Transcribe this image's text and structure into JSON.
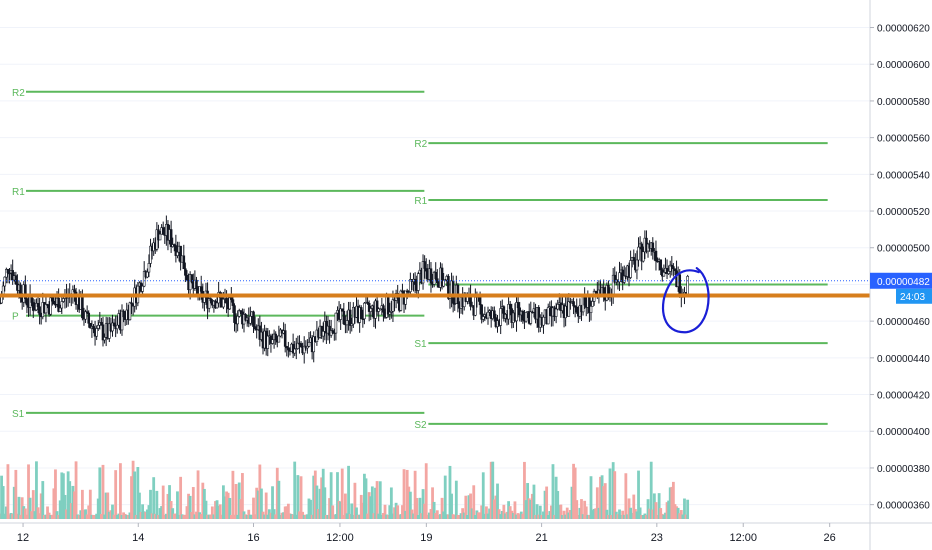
{
  "chart_data": {
    "type": "candlestick",
    "y_axis": {
      "ticks": [
        6.2e-06,
        6e-06,
        5.8e-06,
        5.6e-06,
        5.4e-06,
        5.2e-06,
        5e-06,
        4.8e-06,
        4.6e-06,
        4.4e-06,
        4.2e-06,
        4e-06,
        3.8e-06,
        3.6e-06
      ],
      "tick_labels": [
        "0.00000620",
        "0.00000600",
        "0.00000580",
        "0.00000560",
        "0.00000540",
        "0.00000520",
        "0.00000500",
        "0.00000480",
        "0.00000460",
        "0.00000440",
        "0.00000420",
        "0.00000400",
        "0.00000380",
        "0.00000360"
      ],
      "ylim": [
        3.5e-06,
        6.35e-06
      ]
    },
    "x_axis": {
      "tick_labels": [
        "12",
        "14",
        "16",
        "12:00",
        "19",
        "21",
        "23",
        "12:00",
        "26"
      ],
      "tick_days": [
        12,
        14,
        16,
        17.5,
        19,
        21,
        23,
        24.5,
        26
      ],
      "xlim": [
        11.6,
        26.7
      ]
    },
    "current_price": {
      "label": "0.00000482",
      "value": 4.82e-06,
      "color": "#2962ff"
    },
    "countdown": {
      "label": "24:03",
      "color": "#2196f3"
    },
    "horizontal_line": {
      "value": 4.74e-06,
      "color": "#d77e1c"
    },
    "pivot_periods": [
      {
        "from_day": 11.6,
        "to_day": 19,
        "levels": [
          {
            "name": "R2",
            "value": 5.85e-06
          },
          {
            "name": "R1",
            "value": 5.31e-06
          },
          {
            "name": "P",
            "value": 4.63e-06
          },
          {
            "name": "S1",
            "value": 4.1e-06
          }
        ]
      },
      {
        "from_day": 19,
        "to_day": 26,
        "levels": [
          {
            "name": "R2",
            "value": 5.57e-06
          },
          {
            "name": "R1",
            "value": 5.26e-06
          },
          {
            "name": "P",
            "value": 4.8e-06
          },
          {
            "name": "S1",
            "value": 4.48e-06
          },
          {
            "name": "S2",
            "value": 4.04e-06
          }
        ]
      }
    ],
    "price_path": [
      [
        11.6,
        4.7e-06
      ],
      [
        11.75,
        4.92e-06
      ],
      [
        11.9,
        4.8e-06
      ],
      [
        12.1,
        4.7e-06
      ],
      [
        12.3,
        4.68e-06
      ],
      [
        12.6,
        4.7e-06
      ],
      [
        12.9,
        4.76e-06
      ],
      [
        13.1,
        4.6e-06
      ],
      [
        13.3,
        4.55e-06
      ],
      [
        13.5,
        4.53e-06
      ],
      [
        13.8,
        4.65e-06
      ],
      [
        14.0,
        4.78e-06
      ],
      [
        14.2,
        4.95e-06
      ],
      [
        14.35,
        5.09e-06
      ],
      [
        14.5,
        5.07e-06
      ],
      [
        14.7,
        5e-06
      ],
      [
        14.9,
        4.8e-06
      ],
      [
        15.1,
        4.72e-06
      ],
      [
        15.3,
        4.73e-06
      ],
      [
        15.5,
        4.7e-06
      ],
      [
        15.7,
        4.63e-06
      ],
      [
        15.9,
        4.63e-06
      ],
      [
        16.1,
        4.53e-06
      ],
      [
        16.3,
        4.47e-06
      ],
      [
        16.5,
        4.5e-06
      ],
      [
        16.7,
        4.45e-06
      ],
      [
        17.0,
        4.47e-06
      ],
      [
        17.3,
        4.58e-06
      ],
      [
        17.6,
        4.62e-06
      ],
      [
        17.9,
        4.64e-06
      ],
      [
        18.2,
        4.67e-06
      ],
      [
        18.5,
        4.7e-06
      ],
      [
        18.75,
        4.78e-06
      ],
      [
        18.95,
        4.87e-06
      ],
      [
        19.2,
        4.85e-06
      ],
      [
        19.4,
        4.77e-06
      ],
      [
        19.6,
        4.72e-06
      ],
      [
        19.9,
        4.68e-06
      ],
      [
        20.1,
        4.62e-06
      ],
      [
        20.3,
        4.62e-06
      ],
      [
        20.6,
        4.65e-06
      ],
      [
        20.8,
        4.64e-06
      ],
      [
        21.0,
        4.6e-06
      ],
      [
        21.3,
        4.65e-06
      ],
      [
        21.6,
        4.68e-06
      ],
      [
        21.9,
        4.7e-06
      ],
      [
        22.2,
        4.78e-06
      ],
      [
        22.4,
        4.87e-06
      ],
      [
        22.6,
        4.9e-06
      ],
      [
        22.8,
        5.02e-06
      ],
      [
        22.95,
        5e-06
      ],
      [
        23.1,
        4.9e-06
      ],
      [
        23.3,
        4.85e-06
      ],
      [
        23.45,
        4.78e-06
      ],
      [
        23.55,
        4.82e-06
      ]
    ],
    "volume_colors": {
      "up": "#7fcfc0",
      "down": "#f3a6a2"
    },
    "pivot_color": "#5cb85c",
    "annotation": {
      "type": "ellipse",
      "color": "#1a1fd6",
      "center_day": 23.45,
      "center_value": 4.78e-06
    }
  }
}
